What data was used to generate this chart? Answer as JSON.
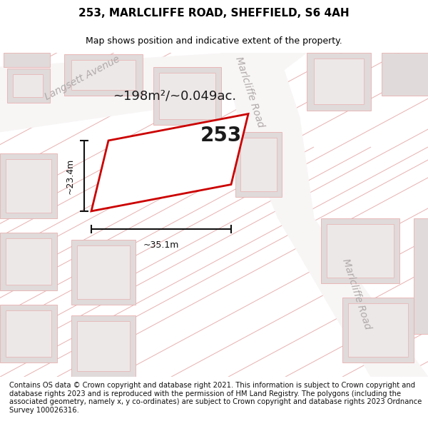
{
  "title_line1": "253, MARLCLIFFE ROAD, SHEFFIELD, S6 4AH",
  "title_line2": "Map shows position and indicative extent of the property.",
  "footer_text": "Contains OS data © Crown copyright and database right 2021. This information is subject to Crown copyright and database rights 2023 and is reproduced with the permission of HM Land Registry. The polygons (including the associated geometry, namely x, y co-ordinates) are subject to Crown copyright and database rights 2023 Ordnance Survey 100026316.",
  "area_label": "~198m²/~0.049ac.",
  "width_label": "~35.1m",
  "height_label": "~23.4m",
  "number_label": "253",
  "plot_outline_color": "#cc0000",
  "pink_color": "#e8b0b0",
  "block_color": "#e0dada",
  "block_inner_color": "#ede8e8",
  "road_color": "#f8f5f5",
  "map_bg_color": "#f0ecec",
  "dim_color": "#111111",
  "street_color": "#b0aaaa",
  "title_fontsize": 11,
  "subtitle_fontsize": 9,
  "footer_fontsize": 7.2,
  "area_fontsize": 13,
  "number_fontsize": 20,
  "dim_fontsize": 9,
  "street_fontsize": 10
}
